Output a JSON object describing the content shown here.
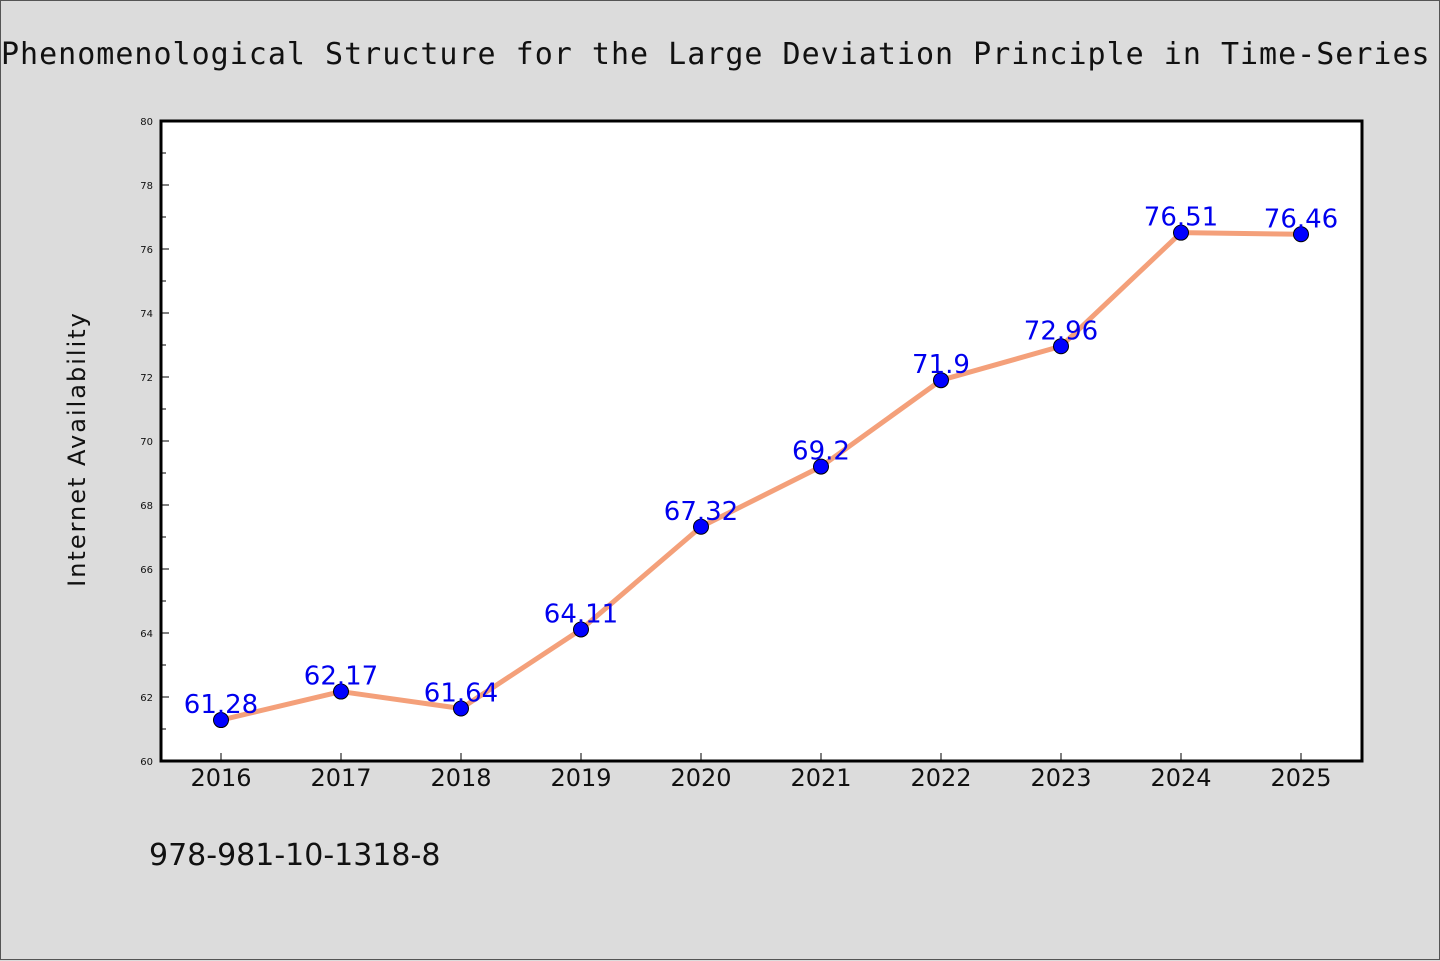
{
  "chart_data": {
    "type": "line",
    "title": "Phenomenological Structure for the Large Deviation Principle in Time-Series Stat",
    "ylabel": "Internet Availability",
    "xlabel": "",
    "categories": [
      "2016",
      "2017",
      "2018",
      "2019",
      "2020",
      "2021",
      "2022",
      "2023",
      "2024",
      "2025"
    ],
    "series": [
      {
        "values": [
          61.28,
          62.17,
          61.64,
          64.11,
          67.32,
          69.2,
          71.9,
          72.96,
          76.51,
          76.46
        ]
      }
    ],
    "data_labels": [
      "61.28",
      "62.17",
      "61.64",
      "64.11",
      "67.32",
      "69.2",
      "71.9",
      "72.96",
      "76.51",
      "76.46"
    ],
    "ylim": [
      60,
      80
    ],
    "yticks": [
      "60",
      "62",
      "64",
      "66",
      "68",
      "70",
      "72",
      "74",
      "76",
      "78",
      "80"
    ],
    "grid": false,
    "legend": "none",
    "colors": {
      "line": "#f4a07a",
      "marker": "#0000ff",
      "labels": "#0000ee",
      "background": "#dcdcdc",
      "plot_background": "#ffffff"
    }
  },
  "caption": "978-981-10-1318-8"
}
